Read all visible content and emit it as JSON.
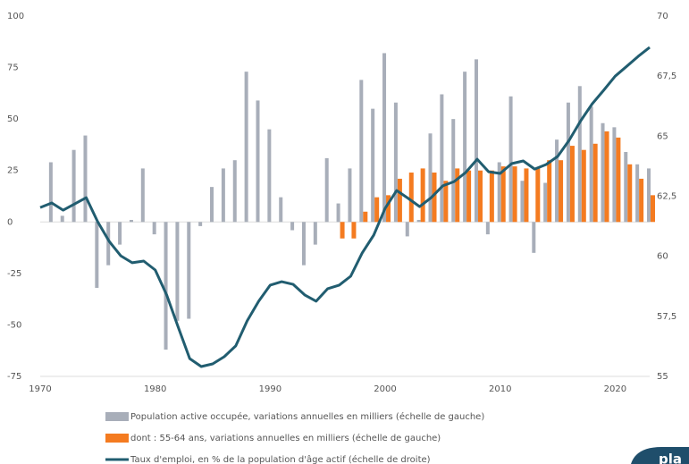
{
  "chart_data": {
    "type": "bar-line",
    "x": [
      1970,
      1971,
      1972,
      1973,
      1974,
      1975,
      1976,
      1977,
      1978,
      1979,
      1980,
      1981,
      1982,
      1983,
      1984,
      1985,
      1986,
      1987,
      1988,
      1989,
      1990,
      1991,
      1992,
      1993,
      1994,
      1995,
      1996,
      1997,
      1998,
      1999,
      2000,
      2001,
      2002,
      2003,
      2004,
      2005,
      2006,
      2007,
      2008,
      2009,
      2010,
      2011,
      2012,
      2013,
      2014,
      2015,
      2016,
      2017,
      2018,
      2019,
      2020,
      2021,
      2022,
      2023
    ],
    "series": [
      {
        "name": "Population active occupée, variations annuelles en milliers (échelle de gauche)",
        "type": "bar",
        "color": "#a8aeb9",
        "values": [
          null,
          29,
          3,
          35,
          42,
          -32,
          -21,
          -11,
          1,
          26,
          -6,
          -62,
          -48,
          -47,
          -2,
          17,
          26,
          30,
          73,
          59,
          45,
          12,
          -4,
          -21,
          -11,
          31,
          9,
          26,
          69,
          55,
          82,
          58,
          -7,
          1,
          43,
          62,
          50,
          73,
          79,
          -6,
          29,
          61,
          20,
          -15,
          19,
          40,
          58,
          66,
          56,
          48,
          46,
          34,
          28,
          26
        ]
      },
      {
        "name": "dont : 55-64 ans, variations annuelles en milliers (échelle de gauche)",
        "type": "bar",
        "color": "#f47b20",
        "values": [
          null,
          null,
          null,
          null,
          null,
          null,
          null,
          null,
          null,
          null,
          null,
          null,
          null,
          null,
          null,
          null,
          null,
          null,
          null,
          null,
          null,
          null,
          null,
          null,
          null,
          null,
          -8,
          -8,
          5,
          12,
          13,
          21,
          24,
          26,
          24,
          20,
          26,
          25,
          25,
          25,
          27,
          27,
          26,
          26,
          30,
          30,
          37,
          35,
          38,
          44,
          41,
          28,
          21,
          13
        ]
      },
      {
        "name": "Taux d'emploi, en % de la population d'âge actif (échelle de droite)",
        "type": "line",
        "color": "#215d70",
        "axis": "y2",
        "values": [
          62.03,
          62.22,
          61.92,
          62.18,
          62.44,
          61.44,
          60.62,
          60.02,
          59.73,
          59.8,
          59.43,
          58.39,
          57.05,
          55.74,
          55.41,
          55.52,
          55.82,
          56.27,
          57.31,
          58.13,
          58.8,
          58.94,
          58.83,
          58.39,
          58.13,
          58.65,
          58.8,
          59.17,
          60.14,
          60.88,
          62.0,
          62.74,
          62.41,
          62.07,
          62.44,
          62.93,
          63.11,
          63.49,
          64.04,
          63.52,
          63.45,
          63.86,
          63.97,
          63.63,
          63.82,
          64.16,
          64.83,
          65.64,
          66.35,
          66.91,
          67.5,
          67.91,
          68.32,
          68.7
        ]
      }
    ],
    "xlim": [
      1970,
      2023
    ],
    "xticks": [
      1970,
      1980,
      1990,
      2000,
      2010,
      2020
    ],
    "ylim": [
      -75,
      100
    ],
    "yticks": [
      -75,
      -50,
      -25,
      0,
      25,
      50,
      75,
      100
    ],
    "y2lim": [
      55,
      70
    ],
    "y2ticks": [
      55,
      {
        "value": 57.5,
        "label": "57,5"
      },
      60,
      {
        "value": 62.5,
        "label": "62,5"
      },
      65,
      {
        "value": 67.5,
        "label": "67,5"
      },
      70
    ],
    "grid": false
  },
  "logo_text": "pla"
}
